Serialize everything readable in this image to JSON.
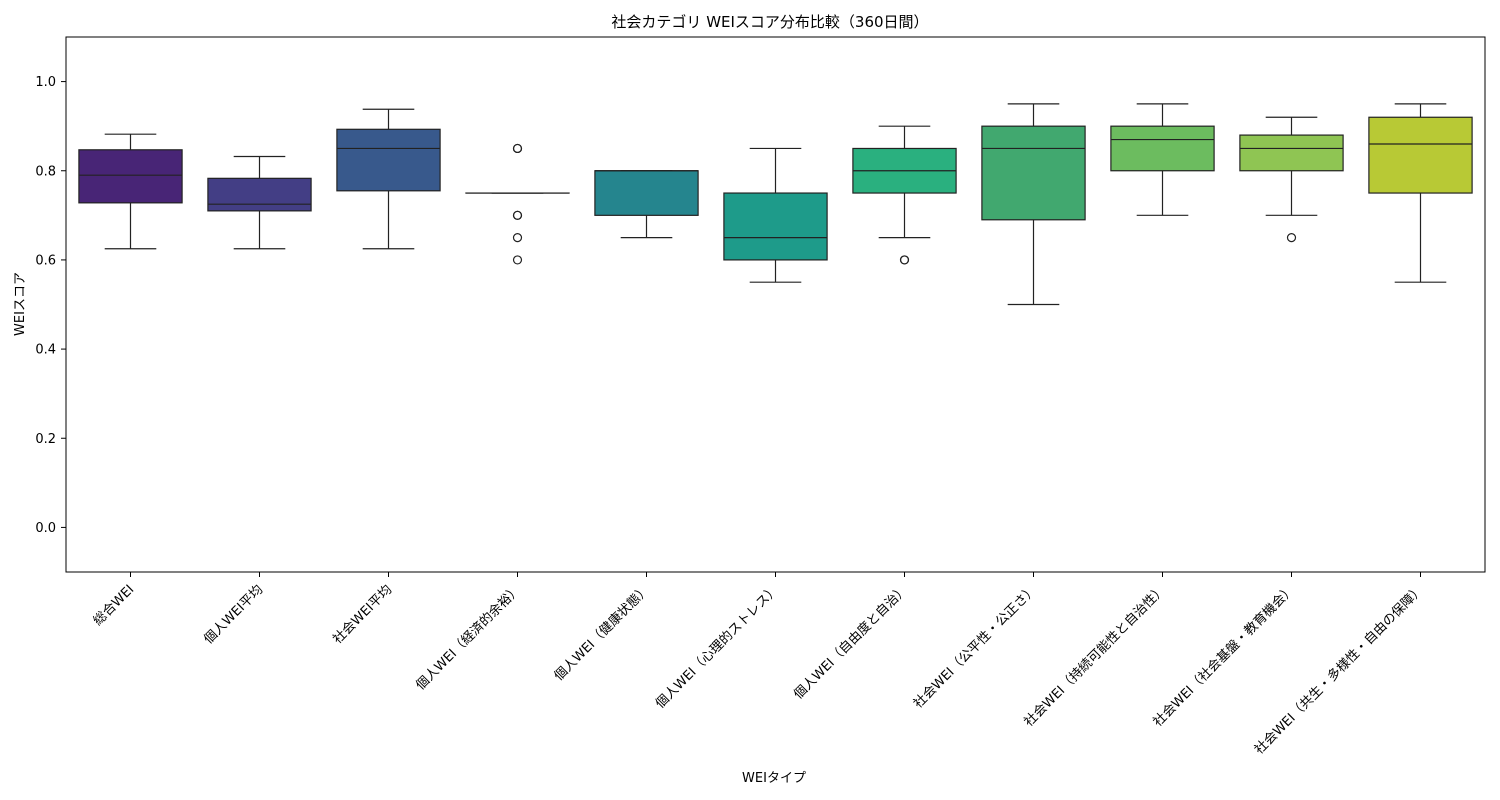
{
  "chart_data": {
    "type": "box",
    "title": "社会カテゴリ WEIスコア分布比較（360日間）",
    "xlabel": "WEIタイプ",
    "ylabel": "WEIスコア",
    "ylim": [
      -0.1,
      1.1
    ],
    "yticks": [
      "0.0",
      "0.2",
      "0.4",
      "0.6",
      "0.8",
      "1.0"
    ],
    "grid": false,
    "legend": "none",
    "boxes": [
      {
        "label": "総合WEI",
        "color": "#482576",
        "whisker_low": 0.625,
        "q1": 0.728,
        "median": 0.79,
        "q3": 0.847,
        "whisker_high": 0.882,
        "outliers": []
      },
      {
        "label": "個人WEI平均",
        "color": "#433e85",
        "whisker_low": 0.625,
        "q1": 0.71,
        "median": 0.725,
        "q3": 0.783,
        "whisker_high": 0.832,
        "outliers": []
      },
      {
        "label": "社会WEI平均",
        "color": "#38598c",
        "whisker_low": 0.625,
        "q1": 0.755,
        "median": 0.85,
        "q3": 0.893,
        "whisker_high": 0.938,
        "outliers": []
      },
      {
        "label": "個人WEI（経済的余裕）",
        "color": "#2d708e",
        "whisker_low": 0.75,
        "q1": 0.75,
        "median": 0.75,
        "q3": 0.75,
        "whisker_high": 0.75,
        "outliers": [
          0.85,
          0.85,
          0.7,
          0.7,
          0.65,
          0.6
        ]
      },
      {
        "label": "個人WEI（健康状態）",
        "color": "#25858e",
        "whisker_low": 0.65,
        "q1": 0.7,
        "median": 0.8,
        "q3": 0.8,
        "whisker_high": 0.8,
        "outliers": []
      },
      {
        "label": "個人WEI（心理的ストレス）",
        "color": "#1e9b8a",
        "whisker_low": 0.55,
        "q1": 0.6,
        "median": 0.65,
        "q3": 0.75,
        "whisker_high": 0.85,
        "outliers": []
      },
      {
        "label": "個人WEI（自由度と自治）",
        "color": "#2ab07f",
        "whisker_low": 0.65,
        "q1": 0.75,
        "median": 0.8,
        "q3": 0.85,
        "whisker_high": 0.9,
        "outliers": [
          0.6,
          0.6
        ]
      },
      {
        "label": "社会WEI（公平性・公正さ）",
        "color": "#41a86f",
        "whisker_low": 0.5,
        "q1": 0.69,
        "median": 0.85,
        "q3": 0.9,
        "whisker_high": 0.95,
        "outliers": []
      },
      {
        "label": "社会WEI（持続可能性と自治性）",
        "color": "#6cbc5f",
        "whisker_low": 0.7,
        "q1": 0.8,
        "median": 0.87,
        "q3": 0.9,
        "whisker_high": 0.95,
        "outliers": []
      },
      {
        "label": "社会WEI（社会基盤・教育機会）",
        "color": "#8fc553",
        "whisker_low": 0.7,
        "q1": 0.8,
        "median": 0.85,
        "q3": 0.88,
        "whisker_high": 0.92,
        "outliers": [
          0.65
        ]
      },
      {
        "label": "社会WEI（共生・多様性・自由の保障）",
        "color": "#b8c935",
        "whisker_low": 0.55,
        "q1": 0.75,
        "median": 0.86,
        "q3": 0.92,
        "whisker_high": 0.95,
        "outliers": []
      }
    ]
  }
}
